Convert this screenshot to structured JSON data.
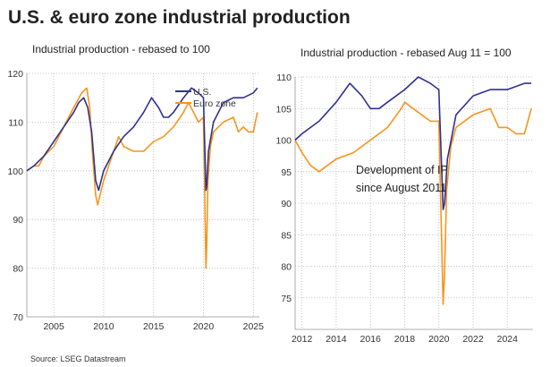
{
  "header": {
    "title": "U.S. & euro zone industrial production",
    "source": "Source: LSEG Datastream"
  },
  "colors": {
    "us": "#2e3192",
    "ez": "#f7941d"
  },
  "chart_data": [
    {
      "type": "line",
      "title": "Industrial production - rebased to 100",
      "ylim": [
        70,
        120
      ],
      "yticks": [
        70,
        80,
        90,
        100,
        110,
        120
      ],
      "xlim": [
        2002.3,
        2025.6
      ],
      "xticks": [
        2005,
        2010,
        2015,
        2020,
        2025
      ],
      "legend": {
        "position": "top-right",
        "entries": [
          "U.S.",
          "Euro zone"
        ]
      },
      "series": [
        {
          "name": "U.S.",
          "color": "#2e3192",
          "x": [
            2002.3,
            2003.0,
            2003.5,
            2004.0,
            2005.0,
            2006.0,
            2007.0,
            2007.5,
            2008.0,
            2008.4,
            2008.8,
            2009.2,
            2009.5,
            2010.0,
            2011.0,
            2012.0,
            2013.0,
            2014.0,
            2014.8,
            2015.5,
            2016.0,
            2016.5,
            2017.0,
            2018.0,
            2018.8,
            2019.5,
            2020.0,
            2020.25,
            2020.33,
            2020.5,
            2021.0,
            2022.0,
            2023.0,
            2024.0,
            2025.0,
            2025.4
          ],
          "values": [
            100,
            101,
            102,
            103,
            106,
            109,
            112,
            114,
            115,
            113,
            108,
            98,
            96,
            100,
            104,
            107,
            109,
            112,
            115,
            113,
            111,
            111,
            112,
            115,
            117,
            116,
            115,
            96,
            97,
            104,
            110,
            114,
            115,
            115,
            116,
            117
          ]
        },
        {
          "name": "Euro zone",
          "color": "#f7941d",
          "x": [
            2002.3,
            2003.0,
            2003.5,
            2004.0,
            2005.0,
            2006.0,
            2007.0,
            2007.8,
            2008.3,
            2008.6,
            2008.9,
            2009.2,
            2009.4,
            2010.0,
            2011.0,
            2011.5,
            2012.0,
            2013.0,
            2014.0,
            2015.0,
            2016.0,
            2017.0,
            2018.0,
            2018.5,
            2019.0,
            2019.5,
            2020.0,
            2020.25,
            2020.33,
            2020.45,
            2020.7,
            2021.0,
            2022.0,
            2023.0,
            2023.5,
            2024.0,
            2024.5,
            2025.0,
            2025.2,
            2025.4
          ],
          "values": [
            100,
            101,
            101,
            103,
            105,
            109,
            113,
            116,
            117,
            113,
            103,
            95,
            93,
            98,
            104,
            107,
            105,
            104,
            104,
            106,
            107,
            109,
            112,
            114,
            112,
            110,
            111,
            80,
            85,
            98,
            105,
            108,
            110,
            111,
            108,
            109,
            108,
            108,
            110,
            112
          ]
        }
      ]
    },
    {
      "type": "line",
      "title": "Industrial production - rebased Aug 11 = 100",
      "annotation": [
        "Development of IP",
        "since August 2011"
      ],
      "ylim": [
        70,
        110
      ],
      "yticks": [
        75,
        80,
        85,
        90,
        95,
        100,
        105,
        110
      ],
      "xlim": [
        2011.6,
        2025.5
      ],
      "xticks": [
        2012,
        2014,
        2016,
        2018,
        2020,
        2022,
        2024
      ],
      "series": [
        {
          "name": "U.S.",
          "color": "#2e3192",
          "x": [
            2011.6,
            2012.0,
            2013.0,
            2014.0,
            2014.8,
            2015.5,
            2016.0,
            2016.5,
            2017.0,
            2018.0,
            2018.8,
            2019.5,
            2020.0,
            2020.25,
            2020.33,
            2020.5,
            2021.0,
            2022.0,
            2023.0,
            2024.0,
            2025.0,
            2025.4
          ],
          "values": [
            100,
            101,
            103,
            106,
            109,
            107,
            105,
            105,
            106,
            108,
            110,
            109,
            108,
            89,
            90,
            97,
            104,
            107,
            108,
            108,
            109,
            109
          ]
        },
        {
          "name": "Euro zone",
          "color": "#f7941d",
          "x": [
            2011.6,
            2012.0,
            2012.5,
            2013.0,
            2013.5,
            2014.0,
            2015.0,
            2016.0,
            2017.0,
            2017.8,
            2018.0,
            2018.5,
            2019.0,
            2019.5,
            2020.0,
            2020.25,
            2020.33,
            2020.45,
            2020.7,
            2021.0,
            2022.0,
            2023.0,
            2023.5,
            2024.0,
            2024.5,
            2025.0,
            2025.2,
            2025.4
          ],
          "values": [
            100,
            98,
            96,
            95,
            96,
            97,
            98,
            100,
            102,
            105,
            106,
            105,
            104,
            103,
            103,
            74,
            79,
            92,
            99,
            102,
            104,
            105,
            102,
            102,
            101,
            101,
            103,
            105
          ]
        }
      ]
    }
  ]
}
